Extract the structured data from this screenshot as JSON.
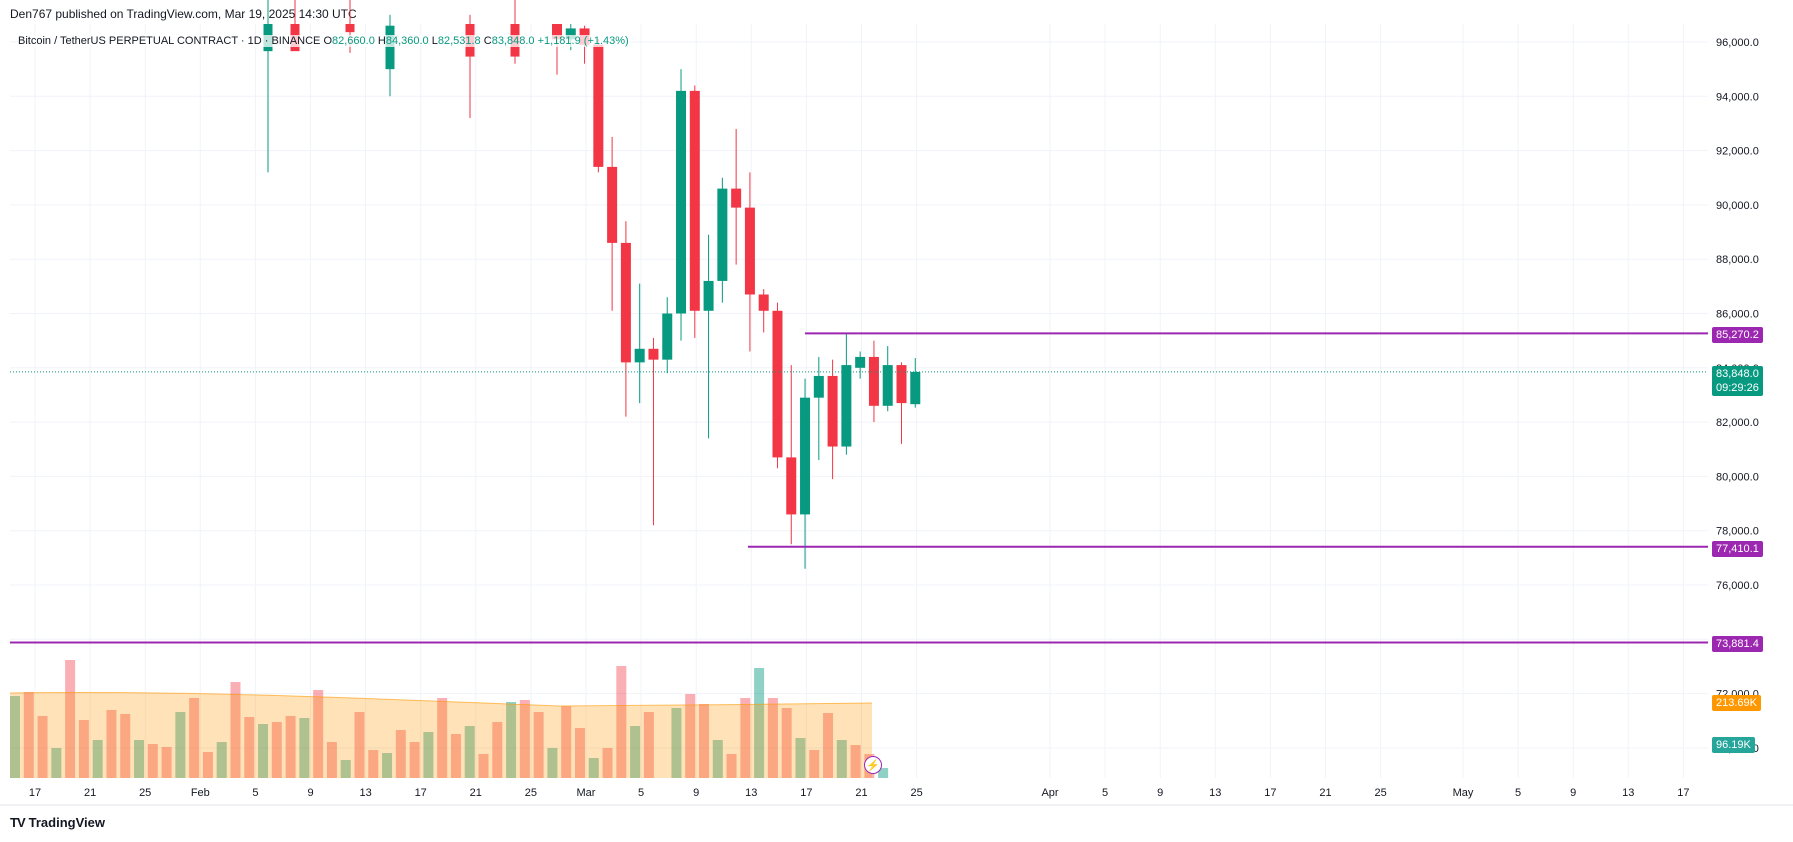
{
  "header": {
    "publisher": "Den767 published on TradingView.com, Mar 19, 2025 14:30 UTC",
    "symbol": "Bitcoin / TetherUS PERPETUAL CONTRACT · 1D · BINANCE",
    "o_label": "O",
    "o_value": "82,660.0",
    "h_label": "H",
    "h_value": "84,360.0",
    "l_label": "L",
    "l_value": "82,531.8",
    "c_label": "C",
    "c_value": "83,848.0",
    "change": "+1,181.9 (+1.43%)"
  },
  "brand": {
    "logo": "TV",
    "name": "TradingView"
  },
  "colors": {
    "up": "#089981",
    "down": "#f23645",
    "level": "#9c27b0",
    "ma": "#ff9800"
  },
  "price_labels": {
    "level_upper": "85,270.2",
    "current_price": "83,848.0",
    "countdown": "09:29:26",
    "level_lower": "77,410.1",
    "level_bottom": "73,881.4",
    "volume_ma": "213.69K",
    "volume_last": "96.19K"
  },
  "chart_data": {
    "type": "candlestick",
    "symbol": "BTCUSDT.P",
    "timeframe": "1D",
    "y_axis": {
      "ticks": [
        "96,000.0",
        "94,000.0",
        "92,000.0",
        "90,000.0",
        "88,000.0",
        "86,000.0",
        "84,000.0",
        "82,000.0",
        "80,000.0",
        "78,000.0",
        "76,000.0",
        "74,000.0",
        "72,000.0",
        "70,000.0"
      ],
      "ylim": [
        69000,
        96500
      ]
    },
    "x_axis": {
      "ticks": [
        "17",
        "21",
        "25",
        "Feb",
        "5",
        "9",
        "13",
        "17",
        "21",
        "25",
        "Mar",
        "5",
        "9",
        "13",
        "17",
        "21",
        "25",
        "Apr",
        "5",
        "9",
        "13",
        "17",
        "21",
        "25",
        "May",
        "5",
        "9",
        "13",
        "17"
      ]
    },
    "horizontal_levels": [
      85270.2,
      77410.1,
      73881.4
    ],
    "current_price": 83848.0,
    "candles_mar": [
      {
        "date": "2025-02-21",
        "o": 98300,
        "h": 99500,
        "l": 94800,
        "c": 96100
      },
      {
        "date": "2025-02-22",
        "o": 96100,
        "h": 96900,
        "l": 95700,
        "c": 96500
      },
      {
        "date": "2025-02-23",
        "o": 96500,
        "h": 96600,
        "l": 95200,
        "c": 95900
      },
      {
        "date": "2025-02-24",
        "o": 95900,
        "h": 96100,
        "l": 91200,
        "c": 91400
      },
      {
        "date": "2025-02-25",
        "o": 91400,
        "h": 92500,
        "l": 86100,
        "c": 88600
      },
      {
        "date": "2025-02-26",
        "o": 88600,
        "h": 89400,
        "l": 82200,
        "c": 84200
      },
      {
        "date": "2025-02-27",
        "o": 84200,
        "h": 87100,
        "l": 82700,
        "c": 84700
      },
      {
        "date": "2025-02-28",
        "o": 84700,
        "h": 85100,
        "l": 78200,
        "c": 84300
      },
      {
        "date": "2025-03-01",
        "o": 84300,
        "h": 86600,
        "l": 83800,
        "c": 86000
      },
      {
        "date": "2025-03-02",
        "o": 86000,
        "h": 95000,
        "l": 85000,
        "c": 94200
      },
      {
        "date": "2025-03-03",
        "o": 94200,
        "h": 94400,
        "l": 85100,
        "c": 86100
      },
      {
        "date": "2025-03-04",
        "o": 86100,
        "h": 88900,
        "l": 81400,
        "c": 87200
      },
      {
        "date": "2025-03-05",
        "o": 87200,
        "h": 91000,
        "l": 86400,
        "c": 90600
      },
      {
        "date": "2025-03-06",
        "o": 90600,
        "h": 92800,
        "l": 87800,
        "c": 89900
      },
      {
        "date": "2025-03-07",
        "o": 89900,
        "h": 91200,
        "l": 84600,
        "c": 86700
      },
      {
        "date": "2025-03-08",
        "o": 86700,
        "h": 86900,
        "l": 85300,
        "c": 86100
      },
      {
        "date": "2025-03-09",
        "o": 86100,
        "h": 86400,
        "l": 80300,
        "c": 80700
      },
      {
        "date": "2025-03-10",
        "o": 80700,
        "h": 84100,
        "l": 77500,
        "c": 78600
      },
      {
        "date": "2025-03-11",
        "o": 78600,
        "h": 83600,
        "l": 76600,
        "c": 82900
      },
      {
        "date": "2025-03-12",
        "o": 82900,
        "h": 84400,
        "l": 80600,
        "c": 83700
      },
      {
        "date": "2025-03-13",
        "o": 83700,
        "h": 84300,
        "l": 79900,
        "c": 81100
      },
      {
        "date": "2025-03-14",
        "o": 81100,
        "h": 85300,
        "l": 80800,
        "c": 84100
      },
      {
        "date": "2025-03-15",
        "o": 84000,
        "h": 84600,
        "l": 83600,
        "c": 84400
      },
      {
        "date": "2025-03-16",
        "o": 84400,
        "h": 85000,
        "l": 82000,
        "c": 82600
      },
      {
        "date": "2025-03-17",
        "o": 82600,
        "h": 84800,
        "l": 82400,
        "c": 84100
      },
      {
        "date": "2025-03-18",
        "o": 84100,
        "h": 84200,
        "l": 81200,
        "c": 82700
      },
      {
        "date": "2025-03-19",
        "o": 82660,
        "h": 84360,
        "l": 82532,
        "c": 83848
      }
    ],
    "volume_last": "96.19K",
    "volume_ma": "213.69K"
  }
}
